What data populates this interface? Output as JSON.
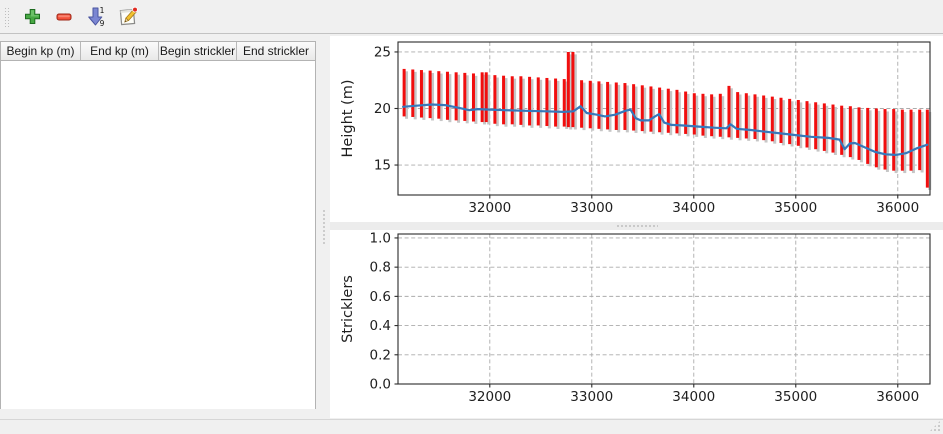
{
  "toolbar": {
    "buttons": [
      {
        "name": "add-row",
        "icon": "plus-icon"
      },
      {
        "name": "remove-row",
        "icon": "minus-icon"
      },
      {
        "name": "sort-rows",
        "icon": "sort-numeric-icon"
      },
      {
        "name": "edit-row",
        "icon": "edit-icon"
      }
    ]
  },
  "table": {
    "columns": [
      "Begin kp (m)",
      "End kp (m)",
      "Begin strickler",
      "End strickler"
    ],
    "rows": []
  },
  "colors": {
    "bar": "#f10e0e",
    "bar_shadow": "#c6c6c6",
    "line": "#3579bc",
    "grid": "#ababab",
    "frame": "#2b2b2b"
  },
  "chart_data": [
    {
      "type": "bar",
      "subtype": "range-bars-with-line",
      "ylabel": "Height (m)",
      "xlabel": "",
      "xlim": [
        31100,
        36316
      ],
      "ylim": [
        12.35,
        25.88
      ],
      "xticks": [
        32000,
        33000,
        34000,
        35000,
        36000
      ],
      "xtick_labels": [
        "32000",
        "33000",
        "34000",
        "35000",
        "36000"
      ],
      "yticks": [
        15,
        20,
        25
      ],
      "ytick_labels": [
        "15",
        "20",
        "25"
      ],
      "grid": true,
      "bars": [
        [
          31160,
          19.3,
          23.5
        ],
        [
          31245,
          19.25,
          23.45
        ],
        [
          31330,
          19.2,
          23.4
        ],
        [
          31415,
          19.15,
          23.35
        ],
        [
          31500,
          19.1,
          23.3
        ],
        [
          31585,
          19.0,
          23.25
        ],
        [
          31670,
          18.95,
          23.2
        ],
        [
          31755,
          18.9,
          23.15
        ],
        [
          31840,
          18.85,
          23.1
        ],
        [
          31925,
          18.8,
          23.2
        ],
        [
          31965,
          18.8,
          23.2
        ],
        [
          32050,
          18.65,
          22.95
        ],
        [
          32135,
          18.6,
          22.9
        ],
        [
          32220,
          18.6,
          22.85
        ],
        [
          32305,
          18.55,
          22.85
        ],
        [
          32390,
          18.5,
          22.8
        ],
        [
          32475,
          18.5,
          22.75
        ],
        [
          32560,
          18.45,
          22.7
        ],
        [
          32645,
          18.4,
          22.65
        ],
        [
          32730,
          18.4,
          22.6
        ],
        [
          32770,
          18.35,
          25.0
        ],
        [
          32815,
          18.35,
          25.0
        ],
        [
          32900,
          18.3,
          22.5
        ],
        [
          32985,
          18.25,
          22.45
        ],
        [
          33070,
          18.2,
          22.4
        ],
        [
          33155,
          18.15,
          22.35
        ],
        [
          33240,
          18.1,
          22.3
        ],
        [
          33325,
          18.1,
          22.25
        ],
        [
          33410,
          18.05,
          22.15
        ],
        [
          33495,
          18.0,
          22.05
        ],
        [
          33580,
          17.95,
          21.95
        ],
        [
          33665,
          17.9,
          21.85
        ],
        [
          33750,
          17.85,
          21.75
        ],
        [
          33835,
          17.8,
          21.65
        ],
        [
          33920,
          17.75,
          21.5
        ],
        [
          34005,
          17.7,
          21.35
        ],
        [
          34090,
          17.6,
          21.3
        ],
        [
          34175,
          17.55,
          21.25
        ],
        [
          34260,
          17.5,
          21.3
        ],
        [
          34345,
          17.45,
          22.0
        ],
        [
          34430,
          17.4,
          21.45
        ],
        [
          34515,
          17.35,
          21.35
        ],
        [
          34600,
          17.3,
          21.25
        ],
        [
          34685,
          17.2,
          21.15
        ],
        [
          34770,
          17.1,
          21.05
        ],
        [
          34855,
          16.95,
          20.95
        ],
        [
          34940,
          16.85,
          20.85
        ],
        [
          35025,
          16.7,
          20.75
        ],
        [
          35110,
          16.55,
          20.65
        ],
        [
          35195,
          16.4,
          20.55
        ],
        [
          35280,
          16.25,
          20.45
        ],
        [
          35365,
          16.1,
          20.35
        ],
        [
          35450,
          15.9,
          20.25
        ],
        [
          35535,
          15.7,
          20.2
        ],
        [
          35620,
          15.45,
          20.1
        ],
        [
          35705,
          15.1,
          20.05
        ],
        [
          35790,
          14.8,
          20.0
        ],
        [
          35875,
          14.6,
          19.95
        ],
        [
          35960,
          14.5,
          19.95
        ],
        [
          36045,
          14.5,
          19.9
        ],
        [
          36130,
          14.5,
          19.9
        ],
        [
          36215,
          14.55,
          19.9
        ],
        [
          36290,
          13.0,
          19.9
        ]
      ],
      "line": [
        [
          31150,
          20.15
        ],
        [
          31280,
          20.25
        ],
        [
          31430,
          20.35
        ],
        [
          31560,
          20.3
        ],
        [
          31700,
          20.05
        ],
        [
          31800,
          19.85
        ],
        [
          31880,
          19.95
        ],
        [
          32000,
          19.9
        ],
        [
          32150,
          19.85
        ],
        [
          32350,
          19.8
        ],
        [
          32550,
          19.75
        ],
        [
          32720,
          19.7
        ],
        [
          32820,
          19.75
        ],
        [
          32890,
          20.2
        ],
        [
          32950,
          19.6
        ],
        [
          33050,
          19.45
        ],
        [
          33130,
          19.3
        ],
        [
          33230,
          19.45
        ],
        [
          33330,
          19.8
        ],
        [
          33380,
          19.9
        ],
        [
          33430,
          19.15
        ],
        [
          33480,
          18.95
        ],
        [
          33560,
          18.95
        ],
        [
          33620,
          19.3
        ],
        [
          33660,
          19.5
        ],
        [
          33710,
          18.75
        ],
        [
          33780,
          18.55
        ],
        [
          33900,
          18.5
        ],
        [
          34050,
          18.4
        ],
        [
          34200,
          18.3
        ],
        [
          34320,
          18.25
        ],
        [
          34360,
          18.6
        ],
        [
          34420,
          18.2
        ],
        [
          34560,
          18.1
        ],
        [
          34700,
          17.95
        ],
        [
          34850,
          17.8
        ],
        [
          35000,
          17.65
        ],
        [
          35150,
          17.5
        ],
        [
          35320,
          17.4
        ],
        [
          35430,
          17.25
        ],
        [
          35480,
          16.4
        ],
        [
          35530,
          16.9
        ],
        [
          35580,
          16.95
        ],
        [
          35680,
          16.55
        ],
        [
          35780,
          16.15
        ],
        [
          35880,
          15.95
        ],
        [
          35980,
          15.9
        ],
        [
          36080,
          16.05
        ],
        [
          36180,
          16.45
        ],
        [
          36290,
          16.8
        ]
      ]
    },
    {
      "type": "line",
      "subtype": "empty",
      "ylabel": "Stricklers",
      "xlabel": "",
      "xlim": [
        31100,
        36316
      ],
      "ylim": [
        0,
        1.027
      ],
      "xticks": [
        32000,
        33000,
        34000,
        35000,
        36000
      ],
      "xtick_labels": [
        "32000",
        "33000",
        "34000",
        "35000",
        "36000"
      ],
      "yticks": [
        0,
        0.2,
        0.4,
        0.6,
        0.8,
        1.0
      ],
      "ytick_labels": [
        "0.0",
        "0.2",
        "0.4",
        "0.6",
        "0.8",
        "1.0"
      ],
      "grid": true,
      "bars": [],
      "line": []
    }
  ]
}
